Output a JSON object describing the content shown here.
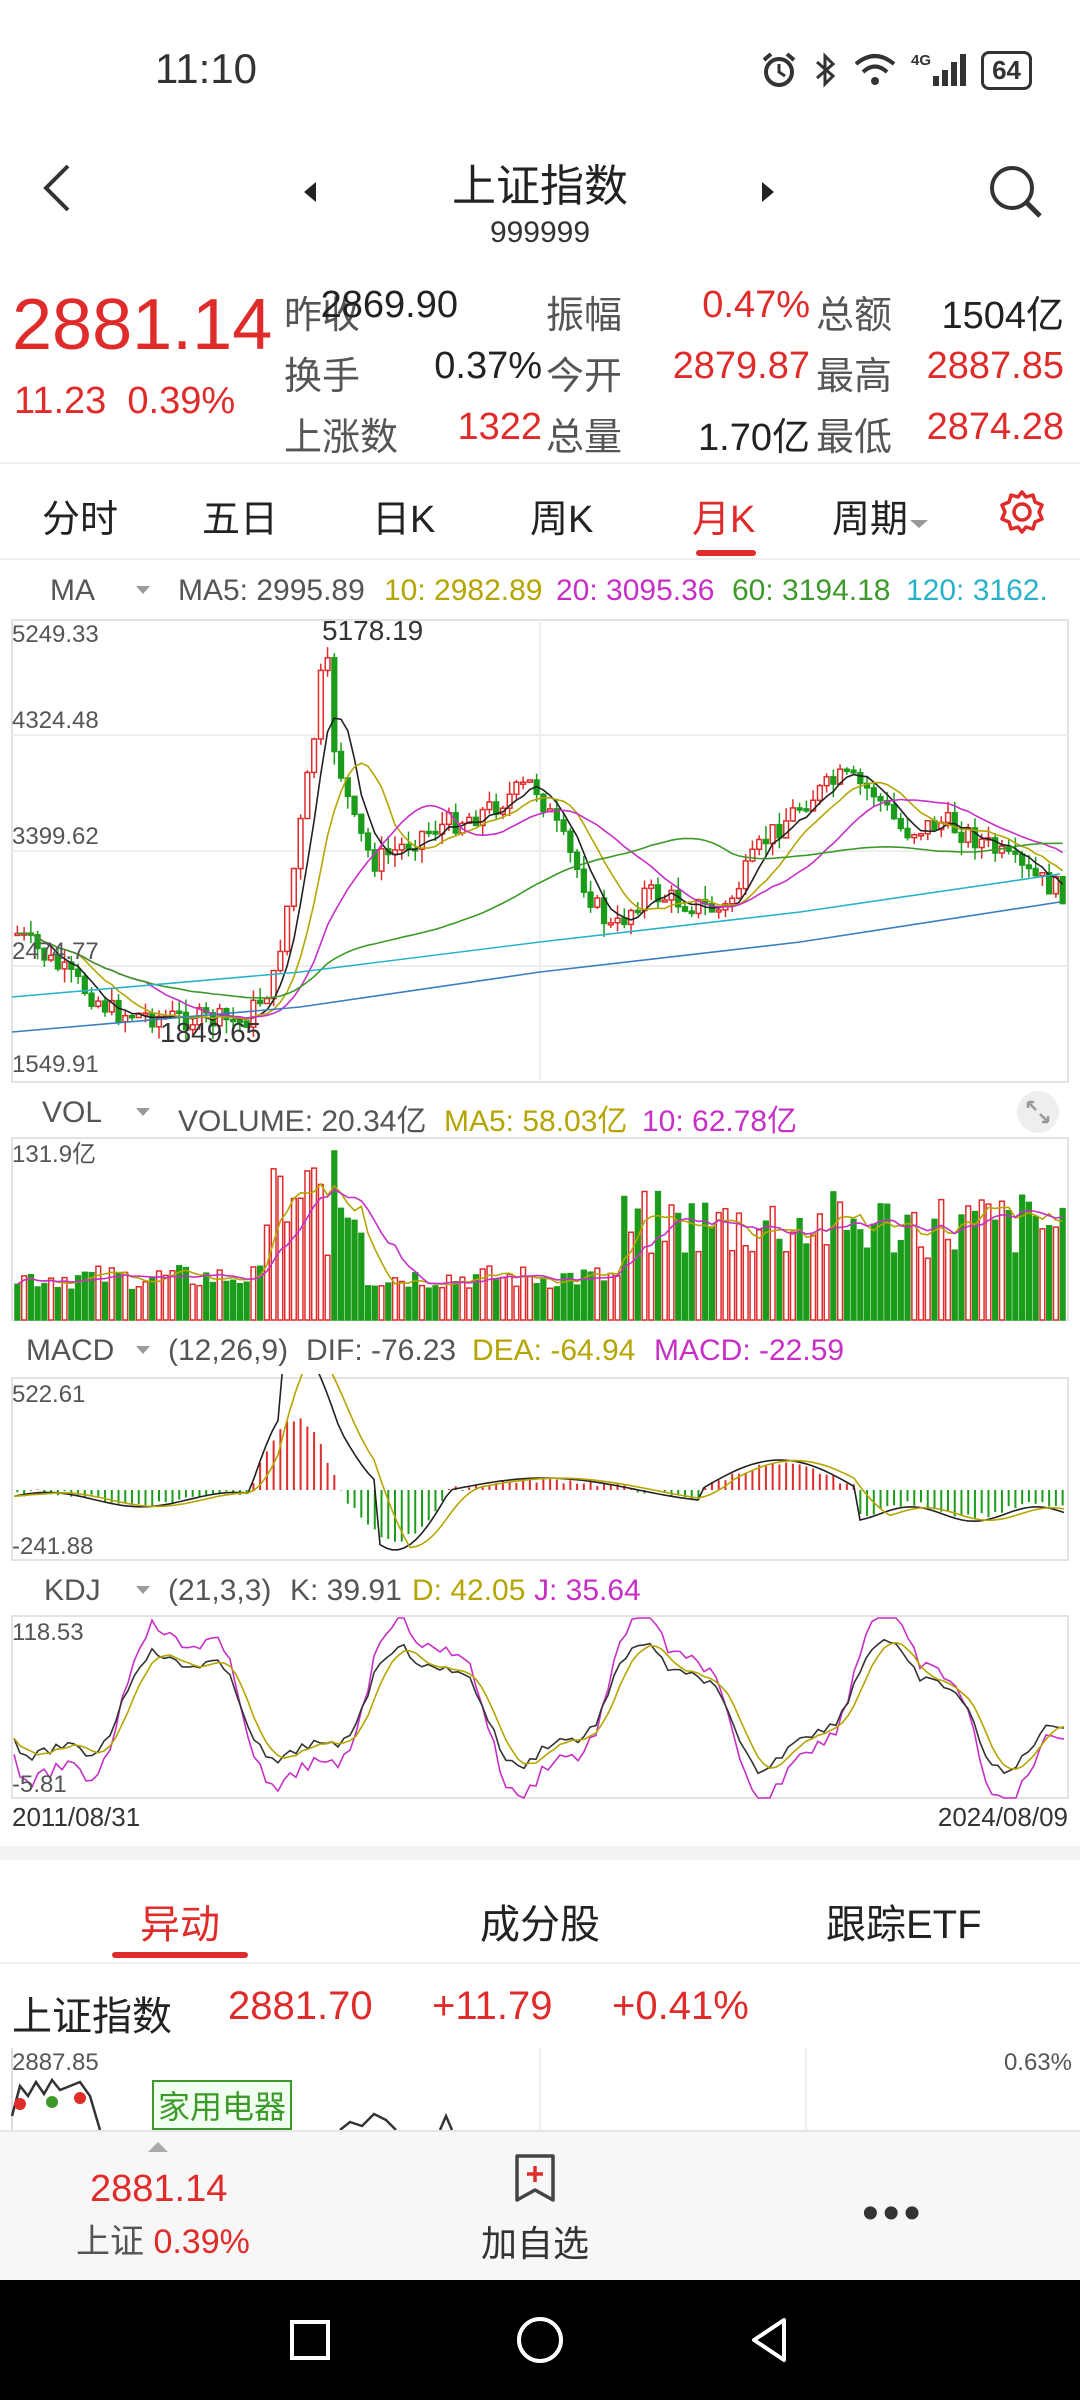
{
  "status": {
    "time": "11:10",
    "network": "4G",
    "battery": "64"
  },
  "header": {
    "title": "上证指数",
    "code": "999999"
  },
  "quote": {
    "price": "2881.14",
    "change": "11.23",
    "change_pct": "0.39%",
    "rows": [
      [
        {
          "label": "昨收",
          "value": "2869.90"
        },
        {
          "label": "振幅",
          "value": "0.47%"
        },
        {
          "label": "总额",
          "value": "1504亿"
        }
      ],
      [
        {
          "label": "换手",
          "value": "0.37%"
        },
        {
          "label": "今开",
          "value": "2879.87"
        },
        {
          "label": "最高",
          "value": "2887.85"
        }
      ],
      [
        {
          "label": "上涨数",
          "value": "1322"
        },
        {
          "label": "总量",
          "value": "1.70亿"
        },
        {
          "label": "最低",
          "value": "2874.28"
        }
      ]
    ]
  },
  "tabs": [
    "分时",
    "五日",
    "日K",
    "周K",
    "月K",
    "周期"
  ],
  "active_tab": "月K",
  "ma_header": {
    "name": "MA",
    "ma5": "MA5: 2995.89",
    "ma10": "10: 2982.89",
    "ma20": "20: 3095.36",
    "ma60": "60: 3194.18",
    "ma120": "120: 3162."
  },
  "vol_header": {
    "name": "VOL",
    "volume": "VOLUME: 20.34亿",
    "ma5": "MA5: 58.03亿",
    "ma10": "10: 62.78亿"
  },
  "macd_header": {
    "name": "MACD",
    "params": "(12,26,9)",
    "dif": "DIF: -76.23",
    "dea": "DEA: -64.94",
    "macd": "MACD: -22.59"
  },
  "kdj_header": {
    "name": "KDJ",
    "params": "(21,3,3)",
    "k": "K: 39.91",
    "d": "D: 42.05",
    "j": "J: 35.64"
  },
  "chart_data": [
    {
      "type": "candlestick",
      "title": "上证指数 月K",
      "y_ticks": [
        "5249.33",
        "4324.48",
        "3399.62",
        "2474.77",
        "1549.91"
      ],
      "ylim": [
        1549.91,
        5249.33
      ],
      "annotations": {
        "high": "5178.19",
        "low": "1849.65"
      },
      "x_range": [
        "2011/08/31",
        "2024/08/09"
      ],
      "series": [
        {
          "name": "MA5",
          "color": "#222222"
        },
        {
          "name": "10",
          "color": "#b5a500"
        },
        {
          "name": "20",
          "color": "#c72fc7"
        },
        {
          "name": "60",
          "color": "#3d9a2a"
        },
        {
          "name": "120",
          "color": "#27b2c9"
        }
      ]
    },
    {
      "type": "bar",
      "title": "VOL",
      "y_ticks": [
        "131.9亿"
      ],
      "ylim": [
        0,
        131.9
      ]
    },
    {
      "type": "bar",
      "title": "MACD",
      "y_ticks": [
        "522.61",
        "-241.88"
      ],
      "ylim": [
        -241.88,
        522.61
      ]
    },
    {
      "type": "line",
      "title": "KDJ",
      "y_ticks": [
        "118.53",
        "-5.81"
      ],
      "ylim": [
        -5.81,
        118.53
      ],
      "x_labels": [
        "2011/08/31",
        "2024/08/09"
      ]
    }
  ],
  "subtabs": [
    "异动",
    "成分股",
    "跟踪ETF"
  ],
  "mini_quote": {
    "name": "上证指数",
    "price": "2881.70",
    "change": "+11.79",
    "change_pct": "+0.41%"
  },
  "mini_chart": {
    "high": "2887.85",
    "pct": "0.63%",
    "tag": "家用电器"
  },
  "bottom": {
    "price": "2881.14",
    "label": "上证",
    "pct": "0.39%",
    "add": "加自选"
  }
}
